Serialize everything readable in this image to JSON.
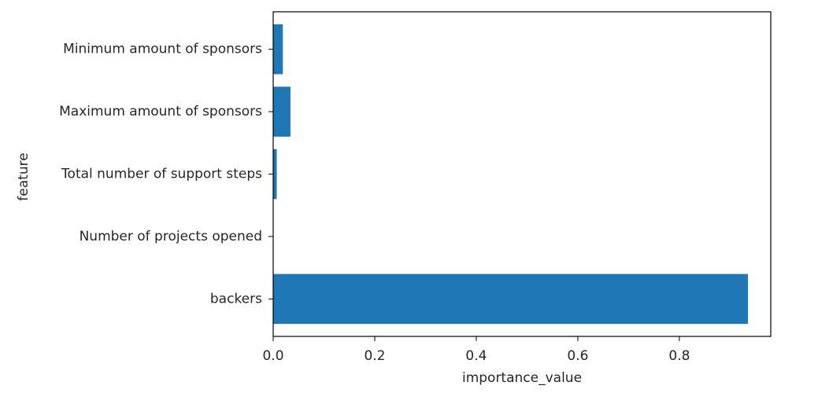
{
  "chart_data": {
    "type": "bar",
    "orientation": "horizontal",
    "categories": [
      "backers",
      "Number of projects opened",
      "Total number of support steps",
      "Maximum amount of sponsors",
      "Minimum amount of sponsors"
    ],
    "values": [
      0.935,
      0.0,
      0.007,
      0.034,
      0.019
    ],
    "xlabel": "importance_value",
    "ylabel": "feature",
    "xlim": [
      0,
      0.98
    ],
    "xticks": [
      0.0,
      0.2,
      0.4,
      0.6,
      0.8
    ],
    "xtick_labels": [
      "0.0",
      "0.2",
      "0.4",
      "0.6",
      "0.8"
    ],
    "bar_color": "#1f77b4",
    "grid": false,
    "legend": "none"
  }
}
